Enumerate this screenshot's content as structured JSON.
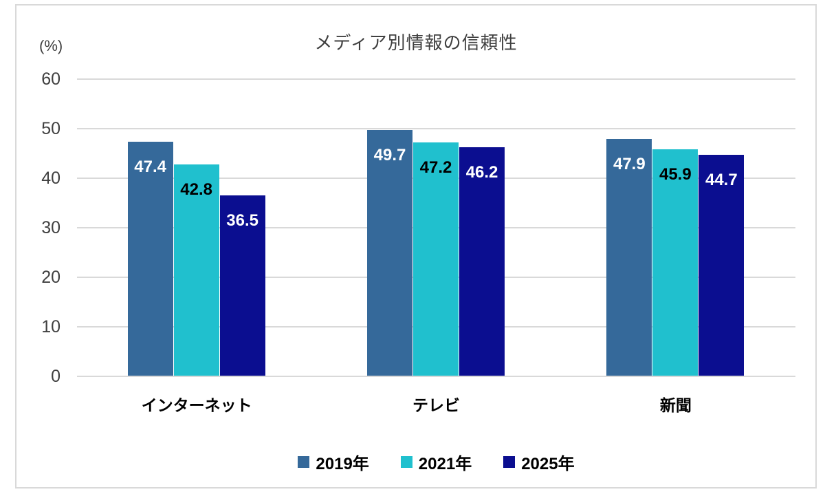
{
  "chart_data": {
    "type": "bar",
    "title": "メディア別情報の信頼性",
    "unit_label": "(%)",
    "categories": [
      "インターネット",
      "テレビ",
      "新聞"
    ],
    "series": [
      {
        "name": "2019年",
        "color": "#35699a",
        "label_color": "#ffffff",
        "values": [
          47.4,
          49.7,
          47.9
        ]
      },
      {
        "name": "2021年",
        "color": "#20c0ce",
        "label_color": "#000000",
        "values": [
          42.8,
          47.2,
          45.9
        ]
      },
      {
        "name": "2025年",
        "color": "#0b0e90",
        "label_color": "#ffffff",
        "values": [
          36.5,
          46.2,
          44.7
        ]
      }
    ],
    "ylim": [
      0,
      60
    ],
    "yticks": [
      0,
      10,
      20,
      30,
      40,
      50,
      60
    ],
    "grid": true,
    "legend_position": "bottom",
    "colors": {
      "grid": "#d9d9d9",
      "axis": "#d9d9d9",
      "frame_border": "#d9d9d9",
      "title_text": "#3f3f3f",
      "tick_text": "#404040",
      "category_text": "#000000",
      "legend_text": "#000000"
    }
  }
}
